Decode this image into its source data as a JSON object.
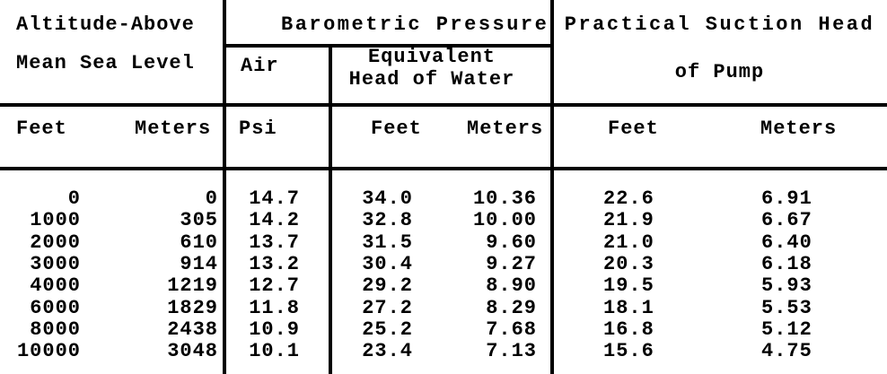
{
  "page": {
    "background_color": "#ffffff",
    "text_color": "#000000"
  },
  "table": {
    "group_headers": {
      "altitude_line1": "Altitude-Above",
      "altitude_line2": "Mean Sea Level",
      "barometric": "Barometric Pressure",
      "air": "Air",
      "equiv_line1": "Equivalent",
      "equiv_line2": "Head of Water",
      "suction_line1": "Practical Suction Head",
      "suction_line2": "of Pump"
    },
    "column_headers": {
      "alt_feet": "Feet",
      "alt_meters": "Meters",
      "psi": "Psi",
      "head_feet": "Feet",
      "head_meters": "Meters",
      "suction_feet": "Feet",
      "suction_meters": "Meters"
    },
    "rows": [
      [
        "0",
        "0",
        "14.7",
        "34.0",
        "10.36",
        "22.6",
        "6.91"
      ],
      [
        "1000",
        "305",
        "14.2",
        "32.8",
        "10.00",
        "21.9",
        "6.67"
      ],
      [
        "2000",
        "610",
        "13.7",
        "31.5",
        "9.60",
        "21.0",
        "6.40"
      ],
      [
        "3000",
        "914",
        "13.2",
        "30.4",
        "9.27",
        "20.3",
        "6.18"
      ],
      [
        "4000",
        "1219",
        "12.7",
        "29.2",
        "8.90",
        "19.5",
        "5.93"
      ],
      [
        "6000",
        "1829",
        "11.8",
        "27.2",
        "8.29",
        "18.1",
        "5.53"
      ],
      [
        "8000",
        "2438",
        "10.9",
        "25.2",
        "7.68",
        "16.8",
        "5.12"
      ],
      [
        "10000",
        "3048",
        "10.1",
        "23.4",
        "7.13",
        "15.6",
        "4.75"
      ]
    ]
  }
}
